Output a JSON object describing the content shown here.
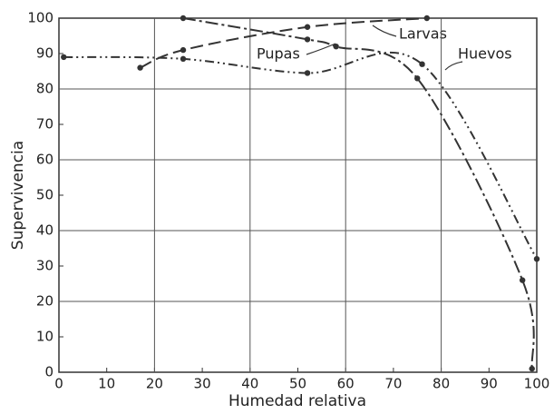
{
  "chart_data": {
    "type": "line",
    "xlabel": "Humedad relativa",
    "ylabel": "Supervivencia",
    "xlim": [
      0,
      100
    ],
    "ylim": [
      0,
      100
    ],
    "xticks": [
      0,
      10,
      20,
      30,
      40,
      50,
      60,
      70,
      80,
      90,
      100
    ],
    "yticks": [
      0,
      10,
      20,
      30,
      40,
      50,
      60,
      70,
      80,
      90,
      100
    ],
    "grid": true,
    "series": [
      {
        "name": "Huevos",
        "color": "#333333",
        "x": [
          1,
          26,
          52,
          76,
          100
        ],
        "values": [
          89,
          88.5,
          84.5,
          87,
          32
        ]
      },
      {
        "name": "Larvas",
        "color": "#333333",
        "x": [
          17,
          26,
          52,
          77
        ],
        "values": [
          86,
          91,
          97.5,
          100
        ]
      },
      {
        "name": "Pupas",
        "color": "#333333",
        "x": [
          26,
          52,
          58,
          75,
          97,
          99
        ],
        "values": [
          100,
          94,
          92,
          83,
          26,
          1
        ]
      }
    ]
  }
}
